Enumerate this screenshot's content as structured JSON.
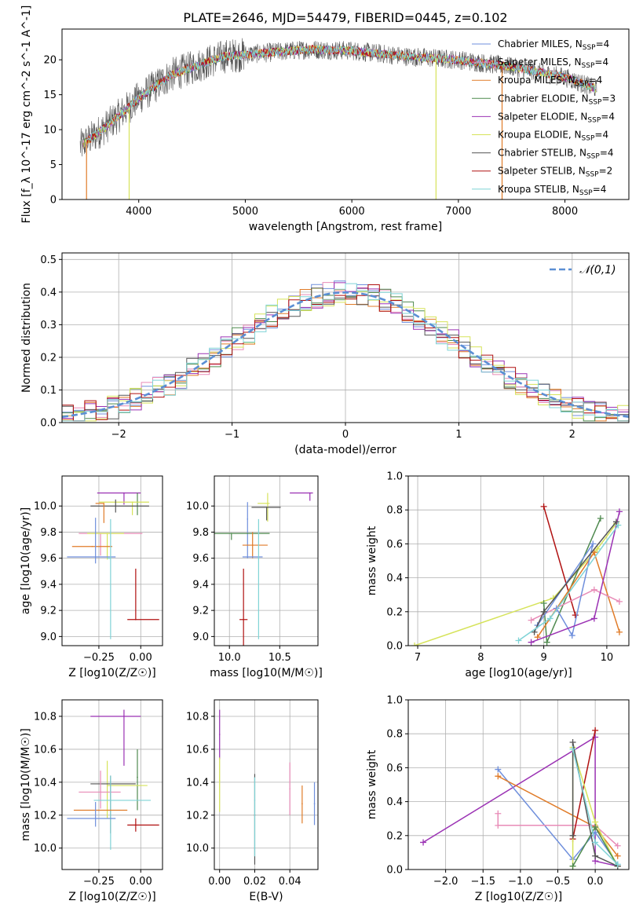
{
  "title": "PLATE=2646, MJD=54479, FIBERID=0445, z=0.102",
  "colors": {
    "chabrier_miles": "#6f8fdc",
    "salpeter_miles": "#e88bb7",
    "kroupa_miles": "#e07b28",
    "chabrier_elodie": "#4f8a4f",
    "salpeter_elodie": "#9b32b4",
    "kroupa_elodie": "#d6e35a",
    "chabrier_stelib": "#555555",
    "salpeter_stelib": "#b01010",
    "kroupa_stelib": "#7fd3d6"
  },
  "models": [
    {
      "key": "chabrier_miles",
      "legend": "Chabrier MILES, N_SSP=4"
    },
    {
      "key": "salpeter_miles",
      "legend": "Salpeter MILES, N_SSP=4"
    },
    {
      "key": "kroupa_miles",
      "legend": "Kroupa MILES, N_SSP=4"
    },
    {
      "key": "chabrier_elodie",
      "legend": "Chabrier ELODIE, N_SSP=3"
    },
    {
      "key": "salpeter_elodie",
      "legend": "Salpeter ELODIE, N_SSP=4"
    },
    {
      "key": "kroupa_elodie",
      "legend": "Kroupa ELODIE, N_SSP=4"
    },
    {
      "key": "chabrier_stelib",
      "legend": "Chabrier STELIB, N_SSP=4"
    },
    {
      "key": "salpeter_stelib",
      "legend": "Salpeter STELIB, N_SSP=2"
    },
    {
      "key": "kroupa_stelib",
      "legend": "Kroupa STELIB, N_SSP=4"
    }
  ],
  "chart_data": [
    {
      "id": "spectrum",
      "type": "line",
      "xlabel": "wavelength [Angstrom, rest frame]",
      "ylabel": "Flux [f_λ 10^-17 erg cm^-2 s^-1 A^-1]",
      "xlim": [
        3280,
        8600
      ],
      "ylim": [
        0,
        24.4
      ],
      "xticks": [
        4000,
        5000,
        6000,
        7000,
        8000
      ],
      "yticks": [
        0,
        5,
        10,
        15,
        20
      ],
      "continuum_knots": {
        "x": [
          3450,
          3700,
          4000,
          4300,
          4800,
          5200,
          5600,
          6000,
          6500,
          7000,
          7500,
          8000,
          8300
        ],
        "y": [
          7.6,
          10.5,
          14.5,
          17.8,
          20.5,
          21.0,
          21.5,
          21.3,
          20.5,
          20.0,
          19.0,
          17.5,
          15.8
        ]
      },
      "dropouts": [
        {
          "x": 3510,
          "to": 0
        },
        {
          "x": 3910,
          "to": 0
        },
        {
          "x": 6790,
          "to": 0
        },
        {
          "x": 7410,
          "to": 0
        }
      ],
      "legend_position": "upper right",
      "grid": false
    },
    {
      "id": "residuals",
      "type": "histogram",
      "xlabel": "(data-model)/error",
      "ylabel": "Normed distribution",
      "xlim": [
        -2.5,
        2.5
      ],
      "ylim": [
        0,
        0.52
      ],
      "xticks": [
        -2,
        -1,
        0,
        1,
        2
      ],
      "yticks": [
        0.0,
        0.1,
        0.2,
        0.3,
        0.4,
        0.5
      ],
      "bin_width": 0.1,
      "reference_curve": {
        "name": "𝒩(0,1)",
        "mean": 0,
        "sigma": 1
      },
      "legend_position": "upper right",
      "grid": true
    },
    {
      "id": "age_vs_Z",
      "type": "errorbar",
      "xlabel": "Z [log10(Z/Z☉)]",
      "ylabel": "age  [log10(age/yr)]",
      "xlim": [
        -0.47,
        0.13
      ],
      "ylim": [
        8.93,
        10.23
      ],
      "xticks": [
        -0.25,
        0.0
      ],
      "yticks": [
        9.0,
        9.2,
        9.4,
        9.6,
        9.8,
        10.0
      ],
      "points": [
        {
          "model": "salpeter_elodie",
          "x": -0.1,
          "xerr": [
            0.16,
            0.1
          ],
          "y": 10.1,
          "yerr": [
            0.09,
            0.0
          ]
        },
        {
          "model": "chabrier_elodie",
          "x": -0.02,
          "xerr": [
            0.0,
            0.0
          ],
          "y": 10.03,
          "yerr": [
            0.1,
            0.07
          ]
        },
        {
          "model": "kroupa_elodie",
          "x": -0.05,
          "xerr": [
            0.2,
            0.1
          ],
          "y": 10.03,
          "yerr": [
            0.1,
            0.0
          ]
        },
        {
          "model": "chabrier_stelib",
          "x": -0.15,
          "xerr": [
            0.15,
            0.2
          ],
          "y": 10.0,
          "yerr": [
            0.05,
            0.05
          ]
        },
        {
          "model": "kroupa_miles",
          "x": -0.22,
          "xerr": [
            0.05,
            0.0
          ],
          "y": 10.02,
          "yerr": [
            0.15,
            0.0
          ]
        },
        {
          "model": "salpeter_miles",
          "x": -0.24,
          "xerr": [
            0.13,
            0.25
          ],
          "y": 9.79,
          "yerr": [
            0.17,
            0.0
          ]
        },
        {
          "model": "kroupa_elodie",
          "x": -0.2,
          "xerr": [
            0.12,
            0.1
          ],
          "y": 9.79,
          "yerr": [
            0.2,
            0.0
          ]
        },
        {
          "model": "kroupa_miles",
          "x": -0.29,
          "xerr": [
            0.12,
            0.12
          ],
          "y": 9.69,
          "yerr": [
            0.0,
            0.0
          ]
        },
        {
          "model": "chabrier_miles",
          "x": -0.27,
          "xerr": [
            0.17,
            0.12
          ],
          "y": 9.61,
          "yerr": [
            0.05,
            0.3
          ]
        },
        {
          "model": "kroupa_stelib",
          "x": -0.18,
          "xerr": [
            0.02,
            0.0
          ],
          "y": 9.6,
          "yerr": [
            0.62,
            0.3
          ]
        },
        {
          "model": "salpeter_stelib",
          "x": -0.03,
          "xerr": [
            0.05,
            0.14
          ],
          "y": 9.13,
          "yerr": [
            0.0,
            0.39
          ]
        }
      ],
      "grid": true
    },
    {
      "id": "age_vs_mass",
      "type": "errorbar",
      "xlabel": "mass [log10(M/M☉)]",
      "ylabel": "",
      "xlim": [
        9.85,
        10.88
      ],
      "ylim": [
        8.93,
        10.23
      ],
      "xticks": [
        10.0,
        10.5
      ],
      "yticks": [
        9.0,
        9.2,
        9.4,
        9.6,
        9.8,
        10.0
      ],
      "points": [
        {
          "model": "salpeter_elodie",
          "x": 10.8,
          "xerr": [
            0.2,
            0.03
          ],
          "y": 10.1,
          "yerr": [
            0.06,
            0.0
          ]
        },
        {
          "model": "kroupa_elodie",
          "x": 10.38,
          "xerr": [
            0.1,
            0.02
          ],
          "y": 10.02,
          "yerr": [
            0.14,
            0.08
          ]
        },
        {
          "model": "chabrier_stelib",
          "x": 10.37,
          "xerr": [
            0.15,
            0.14
          ],
          "y": 9.99,
          "yerr": [
            0.1,
            0.0
          ]
        },
        {
          "model": "chabrier_miles",
          "x": 10.18,
          "xerr": [
            0.0,
            0.0
          ],
          "y": 9.9,
          "yerr": [
            0.3,
            0.13
          ]
        },
        {
          "model": "chabrier_elodie",
          "x": 10.02,
          "xerr": [
            0.18,
            0.38
          ],
          "y": 9.79,
          "yerr": [
            0.05,
            0.0
          ]
        },
        {
          "model": "kroupa_miles",
          "x": 10.23,
          "xerr": [
            0.1,
            0.15
          ],
          "y": 9.7,
          "yerr": [
            0.1,
            0.1
          ]
        },
        {
          "model": "chabrier_miles",
          "x": 10.23,
          "xerr": [
            0.1,
            0.1
          ],
          "y": 9.61,
          "yerr": [
            0.0,
            0.0
          ]
        },
        {
          "model": "kroupa_stelib",
          "x": 10.29,
          "xerr": [
            0.0,
            0.0
          ],
          "y": 9.6,
          "yerr": [
            0.62,
            0.3
          ]
        },
        {
          "model": "salpeter_stelib",
          "x": 10.14,
          "xerr": [
            0.04,
            0.04
          ],
          "y": 9.13,
          "yerr": [
            0.26,
            0.39
          ]
        }
      ],
      "grid": true
    },
    {
      "id": "weight_vs_age",
      "type": "line",
      "xlabel": "age  [log10(age/yr)]",
      "ylabel": "mass weight",
      "xlim": [
        6.85,
        10.35
      ],
      "ylim": [
        0,
        1.0
      ],
      "xticks": [
        7,
        8,
        9,
        10
      ],
      "yticks": [
        0.0,
        0.2,
        0.4,
        0.6,
        0.8,
        1.0
      ],
      "series": [
        {
          "model": "kroupa_elodie",
          "x": [
            6.95,
            9.15,
            9.85,
            10.15
          ],
          "y": [
            0.0,
            0.28,
            0.57,
            0.72
          ]
        },
        {
          "model": "chabrier_elodie",
          "x": [
            9.0,
            9.05,
            9.9
          ],
          "y": [
            0.25,
            0.02,
            0.75
          ]
        },
        {
          "model": "salpeter_stelib",
          "x": [
            9.0,
            9.5
          ],
          "y": [
            0.82,
            0.18
          ]
        },
        {
          "model": "kroupa_miles",
          "x": [
            8.9,
            9.8,
            10.2
          ],
          "y": [
            0.05,
            0.55,
            0.08
          ]
        },
        {
          "model": "salpeter_miles",
          "x": [
            8.8,
            9.8,
            10.2
          ],
          "y": [
            0.15,
            0.33,
            0.26
          ]
        },
        {
          "model": "chabrier_miles",
          "x": [
            9.2,
            9.45,
            9.78,
            8.9
          ],
          "y": [
            0.22,
            0.06,
            0.6,
            0.12
          ]
        },
        {
          "model": "salpeter_elodie",
          "x": [
            8.8,
            9.8,
            10.2
          ],
          "y": [
            0.02,
            0.16,
            0.79
          ]
        },
        {
          "model": "chabrier_stelib",
          "x": [
            8.85,
            9.0,
            10.15
          ],
          "y": [
            0.08,
            0.2,
            0.73
          ]
        },
        {
          "model": "kroupa_stelib",
          "x": [
            8.6,
            9.1,
            10.18
          ],
          "y": [
            0.03,
            0.16,
            0.71
          ]
        }
      ],
      "grid": true
    },
    {
      "id": "mass_vs_Z",
      "type": "errorbar",
      "xlabel": "Z [log10(Z/Z☉)]",
      "ylabel": "mass [log10(M/M☉)]",
      "xlim": [
        -0.47,
        0.13
      ],
      "ylim": [
        9.87,
        10.9
      ],
      "xticks": [
        -0.25,
        0.0
      ],
      "yticks": [
        10.0,
        10.2,
        10.4,
        10.6,
        10.8
      ],
      "points": [
        {
          "model": "salpeter_elodie",
          "x": -0.1,
          "xerr": [
            0.2,
            0.1
          ],
          "y": 10.8,
          "yerr": [
            0.3,
            0.04
          ]
        },
        {
          "model": "chabrier_elodie",
          "x": -0.02,
          "xerr": [
            0.0,
            0.0
          ],
          "y": 10.43,
          "yerr": [
            0.2,
            0.17
          ]
        },
        {
          "model": "kroupa_elodie",
          "x": -0.2,
          "xerr": [
            0.0,
            0.24
          ],
          "y": 10.38,
          "yerr": [
            0.2,
            0.15
          ]
        },
        {
          "model": "chabrier_stelib",
          "x": -0.18,
          "xerr": [
            0.12,
            0.15
          ],
          "y": 10.39,
          "yerr": [
            0.3,
            0.05
          ]
        },
        {
          "model": "salpeter_miles",
          "x": -0.24,
          "xerr": [
            0.13,
            0.12
          ],
          "y": 10.34,
          "yerr": [
            0.1,
            0.13
          ]
        },
        {
          "model": "kroupa_stelib",
          "x": -0.18,
          "xerr": [
            0.1,
            0.24
          ],
          "y": 10.29,
          "yerr": [
            0.3,
            0.15
          ]
        },
        {
          "model": "kroupa_miles",
          "x": -0.25,
          "xerr": [
            0.15,
            0.17
          ],
          "y": 10.23,
          "yerr": [
            0.0,
            0.0
          ]
        },
        {
          "model": "chabrier_miles",
          "x": -0.27,
          "xerr": [
            0.17,
            0.12
          ],
          "y": 10.18,
          "yerr": [
            0.05,
            0.1
          ]
        },
        {
          "model": "salpeter_stelib",
          "x": -0.03,
          "xerr": [
            0.05,
            0.14
          ],
          "y": 10.14,
          "yerr": [
            0.04,
            0.04
          ]
        }
      ],
      "grid": true
    },
    {
      "id": "mass_vs_ebv",
      "type": "errorbar",
      "xlabel": "E(B-V)",
      "ylabel": "",
      "xlim": [
        -0.003,
        0.056
      ],
      "ylim": [
        9.87,
        10.9
      ],
      "xticks": [
        0.0,
        0.02,
        0.04
      ],
      "yticks": [
        10.0,
        10.2,
        10.4,
        10.6,
        10.8
      ],
      "points": [
        {
          "model": "salpeter_elodie",
          "x": 0.0,
          "xerr": [
            0,
            0
          ],
          "y": 10.69,
          "yerr": [
            0.15,
            0.15
          ]
        },
        {
          "model": "kroupa_elodie",
          "x": 0.0,
          "xerr": [
            0,
            0
          ],
          "y": 10.41,
          "yerr": [
            0.19,
            0.14
          ]
        },
        {
          "model": "chabrier_stelib",
          "x": 0.02,
          "xerr": [
            0,
            0
          ],
          "y": 10.2,
          "yerr": [
            0.3,
            0.25
          ]
        },
        {
          "model": "kroupa_stelib",
          "x": 0.02,
          "xerr": [
            0,
            0
          ],
          "y": 10.29,
          "yerr": [
            0.34,
            0.14
          ]
        },
        {
          "model": "salpeter_miles",
          "x": 0.04,
          "xerr": [
            0,
            0
          ],
          "y": 10.36,
          "yerr": [
            0.16,
            0.16
          ]
        },
        {
          "model": "kroupa_miles",
          "x": 0.047,
          "xerr": [
            0,
            0
          ],
          "y": 10.27,
          "yerr": [
            0.12,
            0.11
          ]
        },
        {
          "model": "chabrier_miles",
          "x": 0.054,
          "xerr": [
            0,
            0
          ],
          "y": 10.27,
          "yerr": [
            0.13,
            0.13
          ]
        }
      ],
      "grid": true
    },
    {
      "id": "weight_vs_Z",
      "type": "line",
      "xlabel": "Z [log10(Z/Z☉)]",
      "ylabel": "mass weight",
      "xlim": [
        -2.5,
        0.45
      ],
      "ylim": [
        0,
        1.0
      ],
      "xticks": [
        -2.0,
        -1.5,
        -1.0,
        -0.5,
        0.0
      ],
      "yticks": [
        0.0,
        0.2,
        0.4,
        0.6,
        0.8,
        1.0
      ],
      "series": [
        {
          "model": "salpeter_elodie",
          "x": [
            -2.3,
            0.0,
            0.0,
            0.3
          ],
          "y": [
            0.16,
            0.78,
            0.05,
            0.02
          ]
        },
        {
          "model": "chabrier_miles",
          "x": [
            -1.3,
            -0.3,
            0.0,
            0.3
          ],
          "y": [
            0.59,
            0.06,
            0.22,
            0.03
          ]
        },
        {
          "model": "kroupa_miles",
          "x": [
            -1.3,
            0.0,
            0.3
          ],
          "y": [
            0.55,
            0.25,
            0.08
          ]
        },
        {
          "model": "salpeter_miles",
          "x": [
            -1.3,
            -1.3,
            0.0,
            0.3
          ],
          "y": [
            0.33,
            0.26,
            0.26,
            0.14
          ]
        },
        {
          "model": "salpeter_stelib",
          "x": [
            -0.3,
            0.0
          ],
          "y": [
            0.18,
            0.82
          ]
        },
        {
          "model": "kroupa_elodie",
          "x": [
            -0.3,
            -0.3,
            0.0,
            0.3
          ],
          "y": [
            0.02,
            0.72,
            0.28,
            0.02
          ]
        },
        {
          "model": "chabrier_elodie",
          "x": [
            -0.3,
            0.0,
            0.3
          ],
          "y": [
            0.02,
            0.25,
            0.02
          ]
        },
        {
          "model": "chabrier_stelib",
          "x": [
            -0.3,
            -0.3,
            0.0,
            0.3
          ],
          "y": [
            0.2,
            0.75,
            0.08,
            0.02
          ]
        },
        {
          "model": "kroupa_stelib",
          "x": [
            -0.3,
            0.0,
            0.3
          ],
          "y": [
            0.71,
            0.16,
            0.03
          ]
        }
      ],
      "grid": true
    }
  ]
}
